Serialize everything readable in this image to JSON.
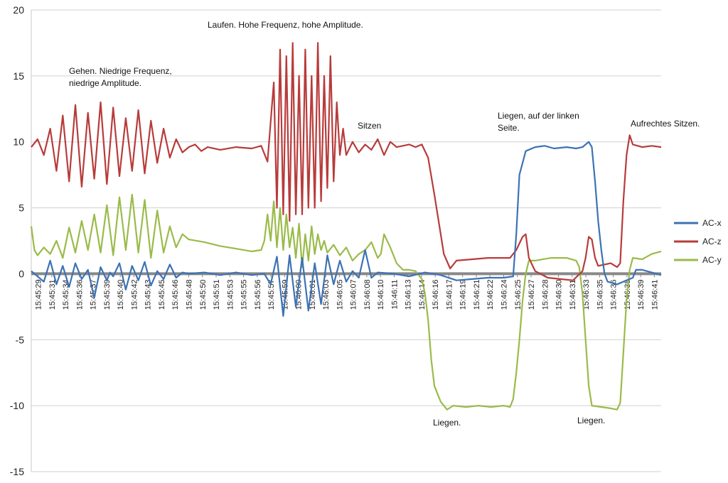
{
  "chart_data": {
    "type": "line",
    "title": "",
    "xlabel": "",
    "ylabel": "",
    "ylim": [
      -15,
      20
    ],
    "y_ticks": [
      20,
      15,
      10,
      5,
      0,
      -5,
      -10,
      -15
    ],
    "grid": true,
    "legend_position": "right",
    "x_ticks": [
      "15:45:29",
      "15:45:31",
      "15:45:34",
      "15:45:36",
      "15:45:37",
      "15:45:39",
      "15:45:40",
      "15:45:42",
      "15:45:43",
      "15:45:45",
      "15:45:46",
      "15:45:48",
      "15:45:50",
      "15:45:51",
      "15:45:53",
      "15:45:55",
      "15:45:56",
      "15:45:57",
      "15:45:59",
      "15:46:00",
      "15:46:01",
      "15:46:03",
      "15:46:05",
      "15:46:07",
      "15:46:08",
      "15:46:10",
      "15:46:11",
      "15:46:13",
      "15:46:14",
      "15:46:16",
      "15:46:17",
      "15:46:19",
      "15:46:21",
      "15:46:22",
      "15:46:24",
      "15:46:25",
      "15:46:27",
      "15:46:28",
      "15:46:30",
      "15:46:31",
      "15:46:33",
      "15:46:35",
      "15:46:36",
      "15:46:38",
      "15:46:39",
      "15:46:41"
    ],
    "series": [
      {
        "name": "AC-x",
        "color": "#3d72b4",
        "points": [
          [
            0,
            0.2
          ],
          [
            4,
            -0.6
          ],
          [
            6,
            1.0
          ],
          [
            8,
            -0.8
          ],
          [
            10,
            0.6
          ],
          [
            12,
            -1.0
          ],
          [
            14,
            0.8
          ],
          [
            16,
            -0.4
          ],
          [
            18,
            0.3
          ],
          [
            20,
            -1.8
          ],
          [
            22,
            0.5
          ],
          [
            24,
            -0.5
          ],
          [
            25,
            0.1
          ],
          [
            26,
            -0.2
          ],
          [
            28,
            0.8
          ],
          [
            30,
            -1.2
          ],
          [
            32,
            0.6
          ],
          [
            34,
            -0.5
          ],
          [
            36,
            0.9
          ],
          [
            38,
            -0.9
          ],
          [
            40,
            0.2
          ],
          [
            42,
            -0.4
          ],
          [
            44,
            0.7
          ],
          [
            46,
            -0.3
          ],
          [
            48,
            0.1
          ],
          [
            50,
            0.0
          ],
          [
            55,
            0.1
          ],
          [
            60,
            -0.1
          ],
          [
            65,
            0.1
          ],
          [
            70,
            -0.1
          ],
          [
            74,
            0.0
          ],
          [
            76,
            -0.8
          ],
          [
            78,
            1.3
          ],
          [
            80,
            -3.2
          ],
          [
            82,
            1.4
          ],
          [
            84,
            -2.5
          ],
          [
            86,
            1.2
          ],
          [
            88,
            -2.8
          ],
          [
            90,
            0.8
          ],
          [
            92,
            -2.3
          ],
          [
            94,
            1.4
          ],
          [
            96,
            -0.8
          ],
          [
            98,
            1.0
          ],
          [
            100,
            -0.6
          ],
          [
            102,
            0.2
          ],
          [
            104,
            -0.3
          ],
          [
            106,
            1.8
          ],
          [
            108,
            -0.3
          ],
          [
            110,
            0.1
          ],
          [
            115,
            0.0
          ],
          [
            120,
            -0.2
          ],
          [
            125,
            0.1
          ],
          [
            130,
            -0.1
          ],
          [
            135,
            -0.5
          ],
          [
            140,
            -0.4
          ],
          [
            145,
            -0.3
          ],
          [
            150,
            -0.3
          ],
          [
            153,
            -0.2
          ],
          [
            154,
            3.0
          ],
          [
            155,
            7.5
          ],
          [
            157,
            9.3
          ],
          [
            160,
            9.6
          ],
          [
            163,
            9.7
          ],
          [
            166,
            9.5
          ],
          [
            170,
            9.6
          ],
          [
            173,
            9.5
          ],
          [
            175,
            9.6
          ],
          [
            177,
            10.0
          ],
          [
            178,
            9.6
          ],
          [
            179,
            7.0
          ],
          [
            180,
            4.0
          ],
          [
            181,
            1.8
          ],
          [
            182,
            0.0
          ],
          [
            183,
            -0.6
          ],
          [
            186,
            -0.8
          ],
          [
            189,
            -0.5
          ],
          [
            191,
            -0.3
          ],
          [
            192,
            0.3
          ],
          [
            194,
            0.3
          ],
          [
            197,
            0.1
          ],
          [
            200,
            -0.1
          ]
        ]
      },
      {
        "name": "AC-z",
        "color": "#b83b3b",
        "points": [
          [
            0,
            9.6
          ],
          [
            2,
            10.2
          ],
          [
            4,
            9.0
          ],
          [
            6,
            11.0
          ],
          [
            8,
            7.8
          ],
          [
            10,
            12.0
          ],
          [
            12,
            7.0
          ],
          [
            14,
            12.8
          ],
          [
            16,
            6.6
          ],
          [
            18,
            12.2
          ],
          [
            20,
            7.2
          ],
          [
            22,
            13.0
          ],
          [
            24,
            6.8
          ],
          [
            26,
            12.6
          ],
          [
            28,
            7.4
          ],
          [
            30,
            11.8
          ],
          [
            32,
            7.8
          ],
          [
            34,
            12.4
          ],
          [
            36,
            7.6
          ],
          [
            38,
            11.6
          ],
          [
            40,
            8.4
          ],
          [
            42,
            11.0
          ],
          [
            44,
            8.8
          ],
          [
            46,
            10.2
          ],
          [
            48,
            9.2
          ],
          [
            50,
            9.6
          ],
          [
            52,
            9.8
          ],
          [
            54,
            9.3
          ],
          [
            56,
            9.6
          ],
          [
            60,
            9.4
          ],
          [
            65,
            9.6
          ],
          [
            70,
            9.5
          ],
          [
            73,
            9.7
          ],
          [
            75,
            8.5
          ],
          [
            77,
            14.5
          ],
          [
            78,
            5.0
          ],
          [
            79,
            17.0
          ],
          [
            80,
            4.5
          ],
          [
            81,
            16.5
          ],
          [
            82,
            4.0
          ],
          [
            83,
            17.5
          ],
          [
            84,
            4.5
          ],
          [
            85,
            15.0
          ],
          [
            86,
            4.5
          ],
          [
            87,
            17.0
          ],
          [
            88,
            5.0
          ],
          [
            89,
            15.0
          ],
          [
            90,
            5.0
          ],
          [
            91,
            17.5
          ],
          [
            92,
            5.5
          ],
          [
            93,
            15.0
          ],
          [
            94,
            6.5
          ],
          [
            95,
            16.5
          ],
          [
            96,
            7.0
          ],
          [
            97,
            13.0
          ],
          [
            98,
            9.0
          ],
          [
            99,
            11.0
          ],
          [
            100,
            9.0
          ],
          [
            102,
            10.0
          ],
          [
            104,
            9.2
          ],
          [
            106,
            9.8
          ],
          [
            108,
            9.4
          ],
          [
            110,
            10.2
          ],
          [
            112,
            9.0
          ],
          [
            114,
            10.0
          ],
          [
            116,
            9.6
          ],
          [
            120,
            9.8
          ],
          [
            122,
            9.6
          ],
          [
            124,
            9.8
          ],
          [
            126,
            8.8
          ],
          [
            128,
            6.0
          ],
          [
            130,
            3.0
          ],
          [
            131,
            1.5
          ],
          [
            133,
            0.4
          ],
          [
            135,
            1.0
          ],
          [
            140,
            1.1
          ],
          [
            145,
            1.2
          ],
          [
            150,
            1.2
          ],
          [
            152,
            1.2
          ],
          [
            154,
            1.8
          ],
          [
            156,
            2.8
          ],
          [
            157,
            3.0
          ],
          [
            158,
            1.2
          ],
          [
            160,
            0.2
          ],
          [
            164,
            -0.3
          ],
          [
            168,
            -0.4
          ],
          [
            172,
            -0.5
          ],
          [
            175,
            0.2
          ],
          [
            176,
            1.2
          ],
          [
            177,
            2.8
          ],
          [
            178,
            2.6
          ],
          [
            179,
            1.2
          ],
          [
            180,
            0.6
          ],
          [
            184,
            0.8
          ],
          [
            186,
            0.5
          ],
          [
            187,
            0.8
          ],
          [
            188,
            5.5
          ],
          [
            189,
            9.0
          ],
          [
            190,
            10.5
          ],
          [
            191,
            9.8
          ],
          [
            194,
            9.6
          ],
          [
            197,
            9.7
          ],
          [
            200,
            9.6
          ]
        ]
      },
      {
        "name": "AC-y",
        "color": "#9abb4a",
        "points": [
          [
            0,
            3.6
          ],
          [
            1,
            1.8
          ],
          [
            2,
            1.4
          ],
          [
            4,
            2.0
          ],
          [
            6,
            1.5
          ],
          [
            8,
            2.5
          ],
          [
            10,
            1.2
          ],
          [
            12,
            3.5
          ],
          [
            14,
            1.6
          ],
          [
            16,
            4.0
          ],
          [
            18,
            1.8
          ],
          [
            20,
            4.5
          ],
          [
            22,
            1.6
          ],
          [
            24,
            5.2
          ],
          [
            26,
            1.4
          ],
          [
            28,
            5.8
          ],
          [
            30,
            1.8
          ],
          [
            32,
            6.0
          ],
          [
            34,
            1.6
          ],
          [
            36,
            5.6
          ],
          [
            38,
            1.2
          ],
          [
            40,
            4.8
          ],
          [
            42,
            1.6
          ],
          [
            44,
            3.6
          ],
          [
            46,
            2.0
          ],
          [
            48,
            3.0
          ],
          [
            50,
            2.6
          ],
          [
            55,
            2.4
          ],
          [
            60,
            2.1
          ],
          [
            65,
            1.9
          ],
          [
            70,
            1.7
          ],
          [
            73,
            1.8
          ],
          [
            74,
            2.5
          ],
          [
            75,
            4.5
          ],
          [
            76,
            2.5
          ],
          [
            77,
            5.5
          ],
          [
            78,
            2.0
          ],
          [
            79,
            5.0
          ],
          [
            80,
            1.8
          ],
          [
            81,
            4.5
          ],
          [
            82,
            2.0
          ],
          [
            83,
            3.5
          ],
          [
            84,
            1.2
          ],
          [
            85,
            3.8
          ],
          [
            86,
            0.5
          ],
          [
            87,
            3.0
          ],
          [
            88,
            1.0
          ],
          [
            89,
            3.6
          ],
          [
            90,
            1.5
          ],
          [
            91,
            3.0
          ],
          [
            92,
            1.8
          ],
          [
            93,
            2.5
          ],
          [
            94,
            1.6
          ],
          [
            96,
            2.2
          ],
          [
            98,
            1.4
          ],
          [
            100,
            2.0
          ],
          [
            102,
            1.0
          ],
          [
            104,
            1.5
          ],
          [
            106,
            1.8
          ],
          [
            108,
            2.4
          ],
          [
            110,
            1.2
          ],
          [
            111,
            1.5
          ],
          [
            112,
            3.0
          ],
          [
            114,
            2.0
          ],
          [
            116,
            0.8
          ],
          [
            118,
            0.3
          ],
          [
            120,
            0.3
          ],
          [
            122,
            0.2
          ],
          [
            124,
            -0.4
          ],
          [
            125,
            -1.5
          ],
          [
            126,
            -3.5
          ],
          [
            127,
            -6.5
          ],
          [
            128,
            -8.5
          ],
          [
            130,
            -9.7
          ],
          [
            132,
            -10.3
          ],
          [
            134,
            -10.0
          ],
          [
            138,
            -10.1
          ],
          [
            142,
            -10.0
          ],
          [
            146,
            -10.1
          ],
          [
            150,
            -10.0
          ],
          [
            152,
            -10.1
          ],
          [
            153,
            -9.5
          ],
          [
            154,
            -7.5
          ],
          [
            155,
            -5.0
          ],
          [
            156,
            -2.0
          ],
          [
            157,
            0.0
          ],
          [
            158,
            1.0
          ],
          [
            160,
            1.0
          ],
          [
            165,
            1.2
          ],
          [
            170,
            1.2
          ],
          [
            173,
            1.0
          ],
          [
            174,
            0.5
          ],
          [
            175,
            -1.5
          ],
          [
            176,
            -5.0
          ],
          [
            177,
            -8.5
          ],
          [
            178,
            -10.0
          ],
          [
            181,
            -10.1
          ],
          [
            184,
            -10.2
          ],
          [
            186,
            -10.3
          ],
          [
            187,
            -9.8
          ],
          [
            188,
            -6.0
          ],
          [
            189,
            -2.0
          ],
          [
            190,
            0.3
          ],
          [
            191,
            1.2
          ],
          [
            194,
            1.1
          ],
          [
            197,
            1.5
          ],
          [
            200,
            1.7
          ]
        ]
      }
    ],
    "annotations": [
      {
        "lines": [
          "Gehen. Niedrige Frequenz,",
          "niedrige Amplitude."
        ]
      },
      {
        "lines": [
          "Laufen. Hohe Frequenz, hohe Amplitude."
        ]
      },
      {
        "lines": [
          "Sitzen"
        ]
      },
      {
        "lines": [
          "Liegen, auf der linken",
          "Seite."
        ]
      },
      {
        "lines": [
          "Aufrechtes Sitzen."
        ]
      },
      {
        "lines": [
          "Liegen."
        ]
      },
      {
        "lines": [
          "Liegen."
        ]
      }
    ]
  }
}
